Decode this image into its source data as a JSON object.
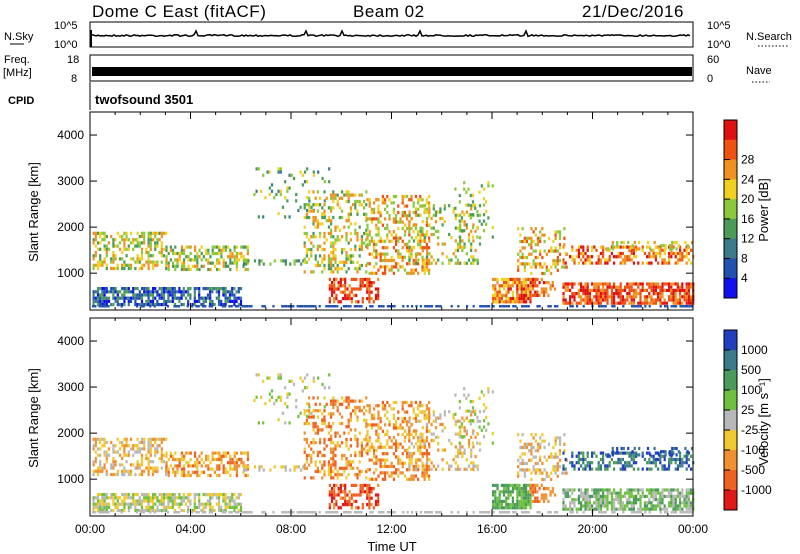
{
  "header": {
    "title": "Dome C East (fitACF)",
    "beam": "Beam 02",
    "date": "21/Dec/2016"
  },
  "top_panels": {
    "nsky_label": "N.Sky",
    "nsky_ticks": [
      "10^5",
      "10^0"
    ],
    "nsearch_label": "N.Search",
    "nsearch_ticks": [
      "10^5",
      "10^0"
    ],
    "freq_label": "Freq.",
    "freq_unit": "[MHz]",
    "freq_ticks": [
      "18",
      "8"
    ],
    "nave_label": "Nave",
    "nave_ticks": [
      "60",
      "0"
    ],
    "cpid_label": "CPID",
    "cpid_value": "twofsound 3501"
  },
  "chart_data": [
    {
      "type": "heatmap",
      "title": "",
      "ylabel": "Slant Range [km]",
      "xlabel": "",
      "ylim": [
        200,
        4500
      ],
      "y_ticks": [
        "1000",
        "2000",
        "3000",
        "4000"
      ],
      "x_range_hours": [
        0,
        24
      ],
      "colorbar": {
        "label": "Power [dB]",
        "ticks": [
          "4",
          "8",
          "12",
          "16",
          "20",
          "24",
          "28"
        ],
        "colors": [
          "#1010f0",
          "#2050b0",
          "#3a7a8a",
          "#4a9a58",
          "#8cc83c",
          "#f0d020",
          "#f09020",
          "#f05010",
          "#e01010"
        ]
      }
    },
    {
      "type": "heatmap",
      "title": "",
      "ylabel": "Slant Range [km]",
      "xlabel": "Time UT",
      "ylim": [
        200,
        4500
      ],
      "y_ticks": [
        "1000",
        "2000",
        "3000",
        "4000"
      ],
      "x_ticks": [
        "00:00",
        "04:00",
        "08:00",
        "12:00",
        "16:00",
        "20:00",
        "00:00"
      ],
      "x_range_hours": [
        0,
        24
      ],
      "colorbar": {
        "label": "Velocity [m s⁻¹]",
        "ticks": [
          "1000",
          "500",
          "100",
          "25",
          "-25",
          "-100",
          "-500",
          "-1000"
        ],
        "colors": [
          "#2040c0",
          "#3a7a8a",
          "#4a9a5a",
          "#70c040",
          "#b8b8b8",
          "#f0c830",
          "#f09030",
          "#f06020",
          "#e01818"
        ]
      }
    }
  ]
}
